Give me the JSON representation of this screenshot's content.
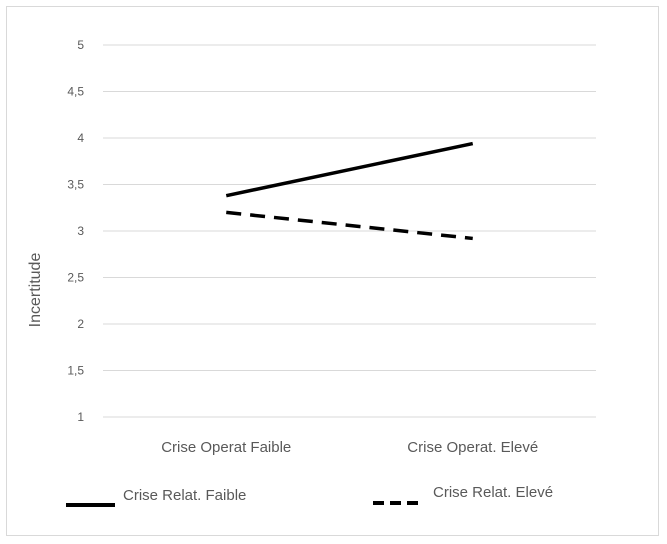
{
  "chart_data": {
    "type": "line",
    "categories": [
      "Crise Operat Faible",
      "Crise Operat.  Elevé"
    ],
    "series": [
      {
        "name": "Crise Relat. Faible",
        "values": [
          3.38,
          3.94
        ],
        "color": "#000000",
        "dash": "solid"
      },
      {
        "name": "Crise Relat.  Elevé",
        "values": [
          3.2,
          2.92
        ],
        "color": "#000000",
        "dash": "dashed"
      }
    ],
    "ylabel": "Incertitude",
    "ylim": [
      1,
      5
    ],
    "yticks": [
      "1",
      "1,5",
      "2",
      "2,5",
      "3",
      "3,5",
      "4",
      "4,5",
      "5"
    ],
    "grid": true,
    "gridColor": "#d9d9d9",
    "legend": "bottom"
  }
}
